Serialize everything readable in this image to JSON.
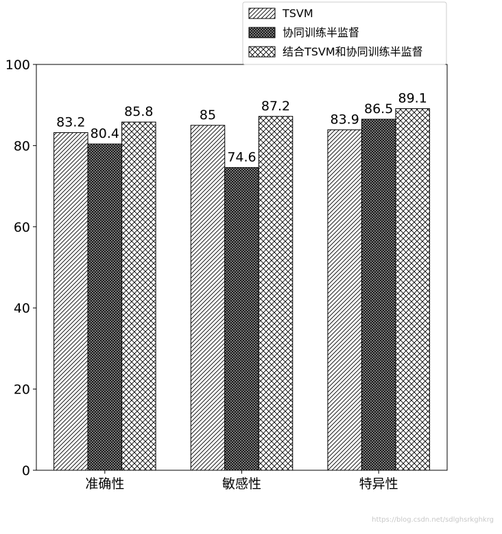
{
  "chart_data": {
    "type": "bar",
    "categories": [
      "准确性",
      "敏感性",
      "特异性"
    ],
    "series": [
      {
        "name": "TSVM",
        "values": [
          83.2,
          85,
          83.9
        ],
        "labels": [
          "83.2",
          "85",
          "83.9"
        ],
        "pattern": "diagonal-hatch"
      },
      {
        "name": "协同训练半监督",
        "values": [
          80.4,
          74.6,
          86.5
        ],
        "labels": [
          "80.4",
          "74.6",
          "86.5"
        ],
        "pattern": "dotted"
      },
      {
        "name": "结合TSVM和协同训练半监督",
        "values": [
          85.8,
          87.2,
          89.1
        ],
        "labels": [
          "85.8",
          "87.2",
          "89.1"
        ],
        "pattern": "cross-hatch"
      }
    ],
    "ylim": [
      0,
      100
    ],
    "yticks": [
      "0",
      "20",
      "40",
      "60",
      "80",
      "100"
    ],
    "grid": false,
    "legend_position": "top-right",
    "colors": {
      "bar_fill": "#ffffff",
      "hatch": "#000000",
      "dots_fill": "#555555"
    }
  },
  "watermark": "https://blog.csdn.net/sdlghsrkghkrg"
}
